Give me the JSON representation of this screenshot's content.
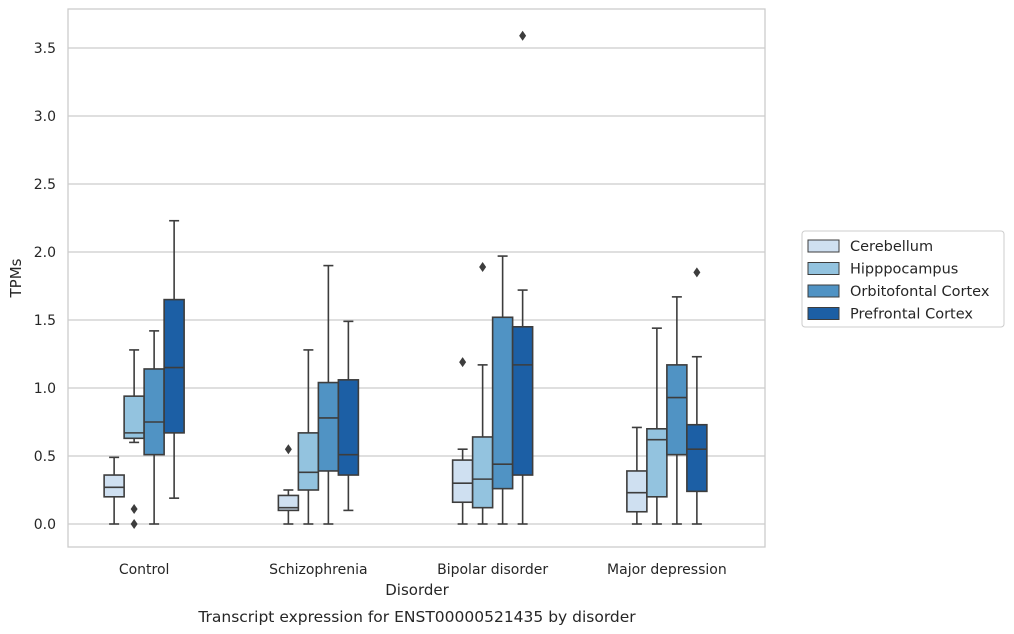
{
  "chart_data": {
    "type": "boxplot",
    "caption": "Transcript expression for ENST00000521435 by disorder",
    "xlabel": "Disorder",
    "ylabel": "TPMs",
    "ylim": [
      -0.17,
      3.76
    ],
    "yticks": [
      0.0,
      0.5,
      1.0,
      1.5,
      2.0,
      2.5,
      3.0,
      3.5
    ],
    "ytick_labels": [
      "0.0",
      "0.5",
      "1.0",
      "1.5",
      "2.0",
      "2.5",
      "3.0",
      "3.5"
    ],
    "grid": "horizontal",
    "legend_position": "right",
    "categories": [
      "Control",
      "Schizophrenia",
      "Bipolar disorder",
      "Major depression"
    ],
    "series": [
      {
        "name": "Cerebellum",
        "color": "#cfe0f1",
        "boxes": [
          {
            "whislo": 0.0,
            "q1": 0.2,
            "med": 0.27,
            "q3": 0.36,
            "whishi": 0.49,
            "fliers": []
          },
          {
            "whislo": 0.0,
            "q1": 0.1,
            "med": 0.12,
            "q3": 0.21,
            "whishi": 0.25,
            "fliers": [
              0.55
            ]
          },
          {
            "whislo": 0.0,
            "q1": 0.16,
            "med": 0.3,
            "q3": 0.47,
            "whishi": 0.55,
            "fliers": [
              1.19
            ]
          },
          {
            "whislo": 0.0,
            "q1": 0.09,
            "med": 0.23,
            "q3": 0.39,
            "whishi": 0.71,
            "fliers": []
          }
        ]
      },
      {
        "name": "Hipppocampus",
        "color": "#93c3df",
        "boxes": [
          {
            "whislo": 0.6,
            "q1": 0.63,
            "med": 0.67,
            "q3": 0.94,
            "whishi": 1.28,
            "fliers": [
              0.11,
              0.0
            ]
          },
          {
            "whislo": 0.0,
            "q1": 0.25,
            "med": 0.38,
            "q3": 0.67,
            "whishi": 1.28,
            "fliers": []
          },
          {
            "whislo": 0.0,
            "q1": 0.12,
            "med": 0.33,
            "q3": 0.64,
            "whishi": 1.17,
            "fliers": [
              1.89
            ]
          },
          {
            "whislo": 0.0,
            "q1": 0.2,
            "med": 0.62,
            "q3": 0.7,
            "whishi": 1.44,
            "fliers": []
          }
        ]
      },
      {
        "name": "Orbitofontal Cortex",
        "color": "#5093c4",
        "boxes": [
          {
            "whislo": 0.0,
            "q1": 0.51,
            "med": 0.75,
            "q3": 1.14,
            "whishi": 1.42,
            "fliers": []
          },
          {
            "whislo": 0.0,
            "q1": 0.39,
            "med": 0.78,
            "q3": 1.04,
            "whishi": 1.9,
            "fliers": []
          },
          {
            "whislo": 0.0,
            "q1": 0.26,
            "med": 0.44,
            "q3": 1.52,
            "whishi": 1.97,
            "fliers": []
          },
          {
            "whislo": 0.0,
            "q1": 0.51,
            "med": 0.93,
            "q3": 1.17,
            "whishi": 1.67,
            "fliers": []
          }
        ]
      },
      {
        "name": "Prefrontal Cortex",
        "color": "#1c5fa5",
        "boxes": [
          {
            "whislo": 0.19,
            "q1": 0.67,
            "med": 1.15,
            "q3": 1.65,
            "whishi": 2.23,
            "fliers": []
          },
          {
            "whislo": 0.1,
            "q1": 0.36,
            "med": 0.51,
            "q3": 1.06,
            "whishi": 1.49,
            "fliers": []
          },
          {
            "whislo": 0.0,
            "q1": 0.36,
            "med": 1.17,
            "q3": 1.45,
            "whishi": 1.72,
            "fliers": [
              3.59
            ]
          },
          {
            "whislo": 0.0,
            "q1": 0.24,
            "med": 0.55,
            "q3": 0.73,
            "whishi": 1.23,
            "fliers": [
              1.85
            ]
          }
        ]
      }
    ]
  }
}
